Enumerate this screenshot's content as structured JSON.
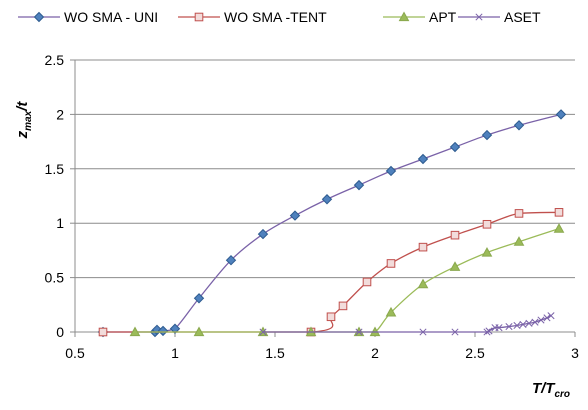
{
  "chart_data": {
    "type": "line",
    "title": "",
    "xlabel": {
      "main": "T/T",
      "sub": "cro"
    },
    "ylabel": {
      "main": "z",
      "sub": "max",
      "suffix": "/t"
    },
    "xlim": [
      0.5,
      3.0
    ],
    "ylim": [
      0,
      2.5
    ],
    "xticks": [
      0.5,
      1,
      1.5,
      2,
      2.5,
      3
    ],
    "xtick_labels": [
      "0.5",
      "1",
      "1.5",
      "2",
      "2.5",
      "3"
    ],
    "yticks": [
      0,
      0.5,
      1,
      1.5,
      2,
      2.5
    ],
    "ytick_labels": [
      "0",
      "0.5",
      "1",
      "1.5",
      "2",
      "2.5"
    ],
    "grid": "horizontal",
    "legend_position": "top",
    "series": [
      {
        "name": "WO SMA - UNI",
        "color": "#7a62a8",
        "marker": "diamond",
        "marker_fill": "#4f81bd",
        "points": [
          [
            0.64,
            0
          ],
          [
            0.9,
            0
          ],
          [
            0.91,
            0.02
          ],
          [
            0.94,
            0.01
          ],
          [
            1.0,
            0.03
          ],
          [
            1.12,
            0.31
          ],
          [
            1.28,
            0.66
          ],
          [
            1.44,
            0.9
          ],
          [
            1.6,
            1.07
          ],
          [
            1.76,
            1.22
          ],
          [
            1.92,
            1.35
          ],
          [
            2.08,
            1.48
          ],
          [
            2.24,
            1.59
          ],
          [
            2.4,
            1.7
          ],
          [
            2.56,
            1.81
          ],
          [
            2.72,
            1.9
          ],
          [
            2.93,
            2.0
          ]
        ]
      },
      {
        "name": "WO SMA -TENT",
        "color": "#c0504d",
        "marker": "square",
        "marker_fill": "#f2dcdb",
        "points": [
          [
            0.64,
            0
          ],
          [
            1.68,
            0
          ],
          [
            1.78,
            0.14
          ],
          [
            1.84,
            0.24
          ],
          [
            1.96,
            0.46
          ],
          [
            2.08,
            0.63
          ],
          [
            2.24,
            0.78
          ],
          [
            2.4,
            0.89
          ],
          [
            2.56,
            0.99
          ],
          [
            2.72,
            1.09
          ],
          [
            2.92,
            1.1
          ]
        ]
      },
      {
        "name": "APT",
        "color": "#9bbb59",
        "marker": "triangle",
        "marker_fill": "#9bbb59",
        "points": [
          [
            0.8,
            0
          ],
          [
            1.12,
            0
          ],
          [
            1.44,
            0
          ],
          [
            1.68,
            0
          ],
          [
            1.92,
            0
          ],
          [
            2.0,
            0
          ],
          [
            2.08,
            0.18
          ],
          [
            2.24,
            0.44
          ],
          [
            2.4,
            0.6
          ],
          [
            2.56,
            0.73
          ],
          [
            2.72,
            0.83
          ],
          [
            2.92,
            0.95
          ]
        ]
      },
      {
        "name": "ASET",
        "color": "#7a62a8",
        "marker": "x",
        "marker_fill": "#7a62a8",
        "points": [
          [
            1.44,
            0
          ],
          [
            1.92,
            0
          ],
          [
            2.24,
            0
          ],
          [
            2.4,
            0
          ],
          [
            2.56,
            0
          ],
          [
            2.57,
            0.01
          ],
          [
            2.6,
            0.04
          ],
          [
            2.62,
            0.04
          ],
          [
            2.67,
            0.05
          ],
          [
            2.71,
            0.06
          ],
          [
            2.74,
            0.07
          ],
          [
            2.77,
            0.08
          ],
          [
            2.8,
            0.09
          ],
          [
            2.83,
            0.11
          ],
          [
            2.86,
            0.13
          ],
          [
            2.88,
            0.15
          ]
        ]
      }
    ]
  }
}
